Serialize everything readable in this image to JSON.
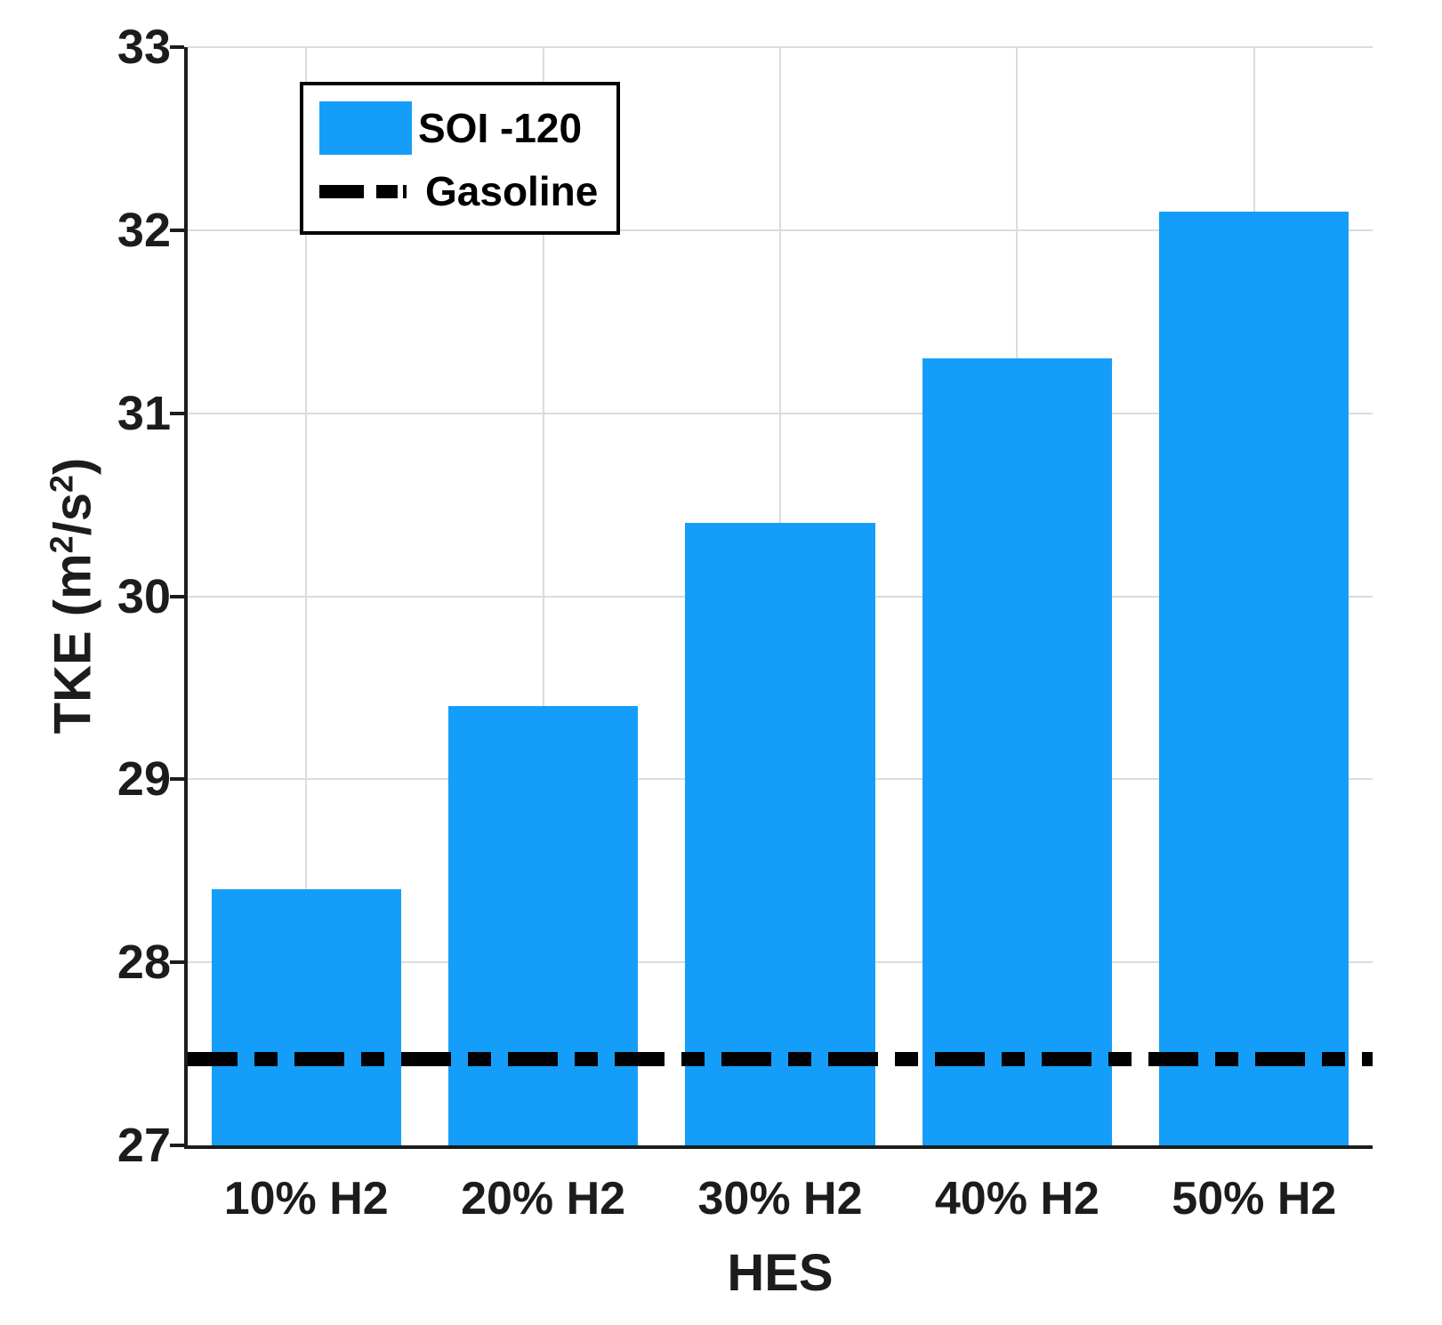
{
  "chart_data": {
    "type": "bar",
    "title": "",
    "xlabel": "HES",
    "ylabel": "TKE (m^2/s^2)",
    "ylabel_parts": [
      {
        "t": "TKE (m"
      },
      {
        "t": "2",
        "sup": true
      },
      {
        "t": "/s"
      },
      {
        "t": "2",
        "sup": true
      },
      {
        "t": ")"
      }
    ],
    "categories": [
      "10% H2",
      "20% H2",
      "30% H2",
      "40% H2",
      "50% H2"
    ],
    "series": [
      {
        "name": "SOI -120",
        "values": [
          28.4,
          29.4,
          30.4,
          31.3,
          32.1
        ],
        "color": "#149EFA"
      }
    ],
    "reference_line": {
      "name": "Gasoline",
      "value": 27.47,
      "style": "dash-dot",
      "color": "#000000"
    },
    "ylim": [
      27,
      33
    ],
    "yticks": [
      27,
      28,
      29,
      30,
      31,
      32,
      33
    ],
    "grid": true,
    "bar_width_fraction": 0.8,
    "legend": {
      "position": "top-left",
      "entries": [
        {
          "label": "SOI -120",
          "marker": "filled-bar",
          "color": "#149EFA"
        },
        {
          "label": "Gasoline",
          "marker": "dash-dot-line",
          "color": "#000000"
        }
      ]
    }
  },
  "colors": {
    "bar": "#149EFA",
    "grid": "#DCDCDC",
    "axis": "#1C1C1C",
    "text": "#1C1C1C",
    "reference_line": "#000000",
    "legend_border": "#000000",
    "background": "#FFFFFF"
  }
}
